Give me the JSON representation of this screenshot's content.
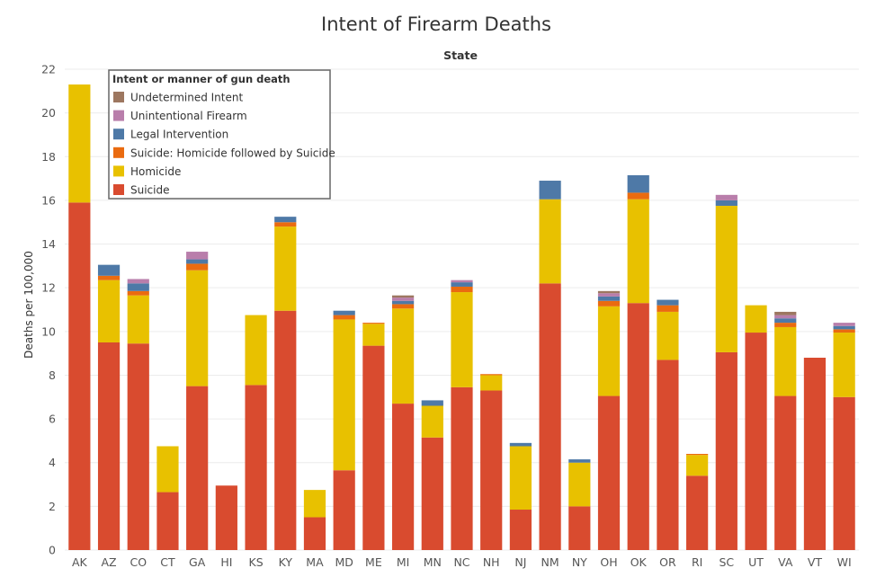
{
  "chart_data": {
    "type": "bar",
    "stacked": true,
    "title": "Intent of Firearm Deaths",
    "subtitle": "State",
    "xlabel": "",
    "ylabel": "Deaths per 100,000",
    "ylim": [
      0,
      22
    ],
    "yticks": [
      0,
      2,
      4,
      6,
      8,
      10,
      12,
      14,
      16,
      18,
      20,
      22
    ],
    "grid": true,
    "legend": {
      "title": "Intent or manner of gun death",
      "placement": "top-left",
      "order": [
        "Undetermined Intent",
        "Unintentional Firearm",
        "Legal Intervention",
        "Suicide: Homicide followed by Suicide",
        "Homicide",
        "Suicide"
      ]
    },
    "categories": [
      "AK",
      "AZ",
      "CO",
      "CT",
      "GA",
      "HI",
      "KS",
      "KY",
      "MA",
      "MD",
      "ME",
      "MI",
      "MN",
      "NC",
      "NH",
      "NJ",
      "NM",
      "NY",
      "OH",
      "OK",
      "OR",
      "RI",
      "SC",
      "UT",
      "VA",
      "VT",
      "WI"
    ],
    "series": [
      {
        "name": "Suicide",
        "color": "#d94b2f",
        "values": [
          15.9,
          9.5,
          9.45,
          2.65,
          7.5,
          2.95,
          7.55,
          10.95,
          1.5,
          3.65,
          9.35,
          6.7,
          5.15,
          7.45,
          7.3,
          1.85,
          12.2,
          2.0,
          7.05,
          11.3,
          8.7,
          3.4,
          9.05,
          9.95,
          7.05,
          8.8,
          7.0
        ]
      },
      {
        "name": "Homicide",
        "color": "#e8c100",
        "values": [
          5.4,
          2.85,
          2.2,
          2.1,
          5.3,
          0,
          3.2,
          3.85,
          1.25,
          6.9,
          1.0,
          4.35,
          1.45,
          4.35,
          0.7,
          2.9,
          3.85,
          2.0,
          4.1,
          4.75,
          2.2,
          0.95,
          6.7,
          1.25,
          3.15,
          0,
          2.95
        ]
      },
      {
        "name": "Suicide: Homicide followed by Suicide",
        "color": "#ea6b10",
        "values": [
          0,
          0.2,
          0.2,
          0,
          0.3,
          0,
          0,
          0.2,
          0,
          0.2,
          0.05,
          0.2,
          0,
          0.25,
          0.05,
          0,
          0,
          0,
          0.25,
          0.3,
          0.3,
          0.05,
          0,
          0,
          0.2,
          0,
          0.15
        ]
      },
      {
        "name": "Legal Intervention",
        "color": "#4e79a7",
        "values": [
          0,
          0.5,
          0.35,
          0,
          0.2,
          0,
          0,
          0.25,
          0,
          0.2,
          0,
          0.15,
          0.25,
          0.2,
          0,
          0.15,
          0.85,
          0.15,
          0.2,
          0.8,
          0.25,
          0,
          0.25,
          0,
          0.2,
          0,
          0.15
        ]
      },
      {
        "name": "Unintentional Firearm",
        "color": "#b97eab",
        "values": [
          0,
          0,
          0.2,
          0,
          0.35,
          0,
          0,
          0,
          0,
          0,
          0,
          0.15,
          0,
          0.1,
          0,
          0,
          0,
          0,
          0.15,
          0,
          0,
          0,
          0.25,
          0,
          0.15,
          0,
          0.15
        ]
      },
      {
        "name": "Undetermined Intent",
        "color": "#9d7760",
        "values": [
          0,
          0,
          0,
          0,
          0,
          0,
          0,
          0,
          0,
          0,
          0,
          0.1,
          0,
          0,
          0,
          0,
          0,
          0,
          0.1,
          0,
          0,
          0,
          0,
          0,
          0.15,
          0,
          0
        ]
      }
    ]
  }
}
